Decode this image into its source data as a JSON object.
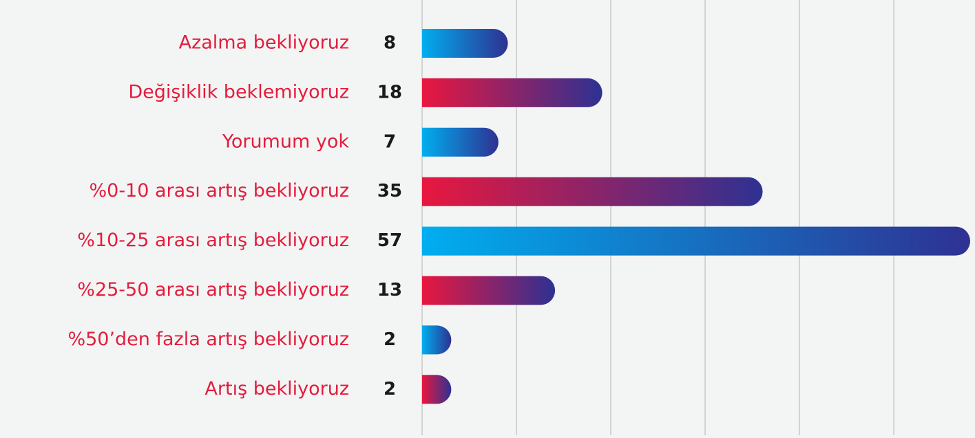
{
  "chart_data": {
    "type": "hbar",
    "categories": [
      "Azalma bekliyoruz",
      "Değişiklik beklemiyoruz",
      "Yorumum yok",
      "%0-10 arası artış bekliyoruz",
      "%10-25 arası artış bekliyoruz",
      "%25-50 arası artış bekliyoruz",
      "%50’den fazla artış bekliyoruz",
      "Artış bekliyoruz"
    ],
    "values": [
      8,
      18,
      7,
      35,
      57,
      13,
      2,
      2
    ],
    "colors": [
      "#00aeef",
      "#e8173f",
      "#00aeef",
      "#e8173f",
      "#00aeef",
      "#e8173f",
      "#00aeef",
      "#e8173f"
    ],
    "gradient_end": "#2e3192",
    "xlim": [
      0,
      57
    ],
    "xticks": [
      0,
      10,
      20,
      30,
      40,
      50
    ],
    "grid": true
  }
}
